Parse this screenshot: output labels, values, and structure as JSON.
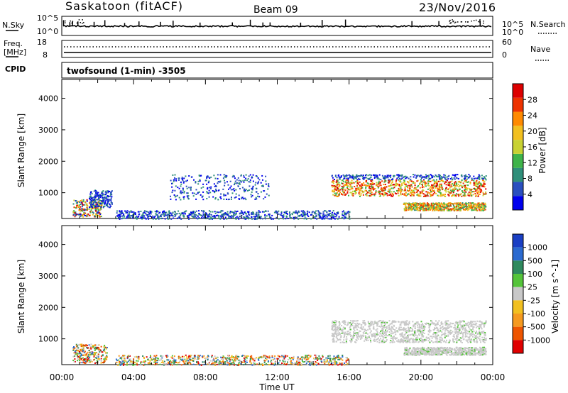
{
  "header": {
    "station": "Saskatoon (fitACF)",
    "beam": "Beam 09",
    "date": "23/Nov/2016"
  },
  "top_panels": {
    "nsky_label": "N.Sky",
    "nsky_ticks": [
      "10^5",
      "10^0"
    ],
    "nsearch_label": "N.Search",
    "nsearch_ticks": [
      "10^5",
      "10^0"
    ],
    "freq_label_1": "Freq.",
    "freq_label_2": "[MHz]",
    "freq_ticks": [
      "18",
      "8"
    ],
    "nave_label": "Nave",
    "nave_ticks": [
      "60",
      "0"
    ],
    "cpid_label": "CPID",
    "cpid_text": "twofsound (1-min) -3505"
  },
  "chart_data": [
    {
      "type": "heatmap",
      "name": "power",
      "ylabel": "Slant Range [km]",
      "xlabel": "Time UT",
      "x_ticks": [
        "00:00",
        "04:00",
        "08:00",
        "12:00",
        "16:00",
        "20:00",
        "00:00"
      ],
      "xlim_hours": [
        0,
        24
      ],
      "y_ticks": [
        1000,
        2000,
        3000,
        4000
      ],
      "ylim_km": [
        180,
        4600
      ],
      "colorbar": {
        "label": "Power [dB]",
        "ticks": [
          "4",
          "8",
          "12",
          "16",
          "20",
          "24",
          "28"
        ],
        "colors": [
          "#0000ee",
          "#2a4fbf",
          "#2f8f7a",
          "#3fb44a",
          "#c8d233",
          "#f2c020",
          "#ff8a00",
          "#ee3300",
          "#dd0000"
        ]
      },
      "echo_regions": [
        {
          "t": [
            0.6,
            2.2
          ],
          "r": [
            250,
            800
          ],
          "level": "mixed-high"
        },
        {
          "t": [
            1.5,
            2.8
          ],
          "r": [
            550,
            1100
          ],
          "level": "low"
        },
        {
          "t": [
            6.0,
            11.5
          ],
          "r": [
            800,
            1600
          ],
          "level": "low-sparse"
        },
        {
          "t": [
            15.0,
            23.6
          ],
          "r": [
            900,
            1600
          ],
          "level": "high-band"
        },
        {
          "t": [
            19.0,
            23.6
          ],
          "r": [
            450,
            700
          ],
          "level": "medium-band"
        },
        {
          "t": [
            3.0,
            16.0
          ],
          "r": [
            180,
            450
          ],
          "level": "low-sparse"
        }
      ]
    },
    {
      "type": "heatmap",
      "name": "velocity",
      "ylabel": "Slant Range [km]",
      "xlabel": "Time UT",
      "x_ticks": [
        "00:00",
        "04:00",
        "08:00",
        "12:00",
        "16:00",
        "20:00",
        "00:00"
      ],
      "xlim_hours": [
        0,
        24
      ],
      "y_ticks": [
        1000,
        2000,
        3000,
        4000
      ],
      "ylim_km": [
        180,
        4600
      ],
      "colorbar": {
        "label": "Velocity [m s^-1]",
        "ticks": [
          "1000",
          "500",
          "100",
          "25",
          "-25",
          "-100",
          "-500",
          "-1000"
        ],
        "colors": [
          "#1a3fc4",
          "#2b6ad0",
          "#2f8a5e",
          "#55c43a",
          "#c8c8c8",
          "#f2c020",
          "#f59a20",
          "#ee5500",
          "#e00000"
        ]
      },
      "echo_regions": [
        {
          "t": [
            0.6,
            2.5
          ],
          "r": [
            250,
            850
          ],
          "level": "ground-scatter-mixed"
        },
        {
          "t": [
            15.0,
            23.6
          ],
          "r": [
            900,
            1600
          ],
          "level": "ground-scatter"
        },
        {
          "t": [
            19.0,
            23.6
          ],
          "r": [
            500,
            750
          ],
          "level": "ground-scatter"
        },
        {
          "t": [
            3.0,
            16.0
          ],
          "r": [
            180,
            500
          ],
          "level": "mixed-sparse"
        }
      ]
    }
  ]
}
